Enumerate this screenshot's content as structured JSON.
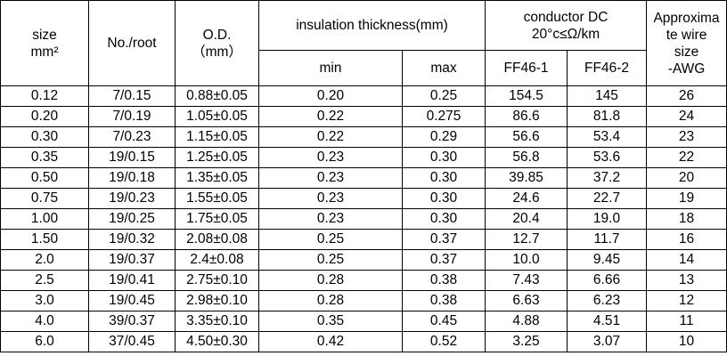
{
  "header": {
    "size": [
      "size",
      "mm²"
    ],
    "no_root": "No./root",
    "od": [
      "O.D.",
      "（mm）"
    ],
    "insulation": "insulation thickness(mm)",
    "min": "min",
    "max": "max",
    "conductor": [
      "conductor DC",
      "20°c≤Ω/km"
    ],
    "ff46_1": "FF46-1",
    "ff46_2": "FF46-2",
    "awg": [
      "Approxima",
      "te wire",
      "size",
      "-AWG"
    ]
  },
  "rows": [
    [
      "0.12",
      "7/0.15",
      "0.88±0.05",
      "0.20",
      "0.25",
      "154.5",
      "145",
      "26"
    ],
    [
      "0.20",
      "7/0.19",
      "1.05±0.05",
      "0.22",
      "0.275",
      "86.6",
      "81.8",
      "24"
    ],
    [
      "0.30",
      "7/0.23",
      "1.15±0.05",
      "0.22",
      "0.29",
      "56.6",
      "53.4",
      "23"
    ],
    [
      "0.35",
      "19/0.15",
      "1.25±0.05",
      "0.23",
      "0.30",
      "56.8",
      "53.6",
      "22"
    ],
    [
      "0.50",
      "19/0.18",
      "1.35±0.05",
      "0.23",
      "0.30",
      "39.85",
      "37.2",
      "20"
    ],
    [
      "0.75",
      "19/0.23",
      "1.55±0.05",
      "0.23",
      "0.30",
      "24.6",
      "22.7",
      "19"
    ],
    [
      "1.00",
      "19/0.25",
      "1.75±0.05",
      "0.23",
      "0.30",
      "20.4",
      "19.0",
      "18"
    ],
    [
      "1.50",
      "19/0.32",
      "2.08±0.08",
      "0.25",
      "0.37",
      "12.7",
      "11.7",
      "16"
    ],
    [
      "2.0",
      "19/0.37",
      "2.4±0.08",
      "0.25",
      "0.37",
      "10.0",
      "9.45",
      "14"
    ],
    [
      "2.5",
      "19/0.41",
      "2.75±0.10",
      "0.28",
      "0.38",
      "7.43",
      "6.66",
      "13"
    ],
    [
      "3.0",
      "19/0.45",
      "2.98±0.10",
      "0.28",
      "0.38",
      "6.63",
      "6.23",
      "12"
    ],
    [
      "4.0",
      "39/0.37",
      "3.35±0.10",
      "0.35",
      "0.45",
      "4.88",
      "4.51",
      "11"
    ],
    [
      "6.0",
      "37/0.45",
      "4.50±0.30",
      "0.42",
      "0.52",
      "3.25",
      "3.07",
      "10"
    ]
  ]
}
